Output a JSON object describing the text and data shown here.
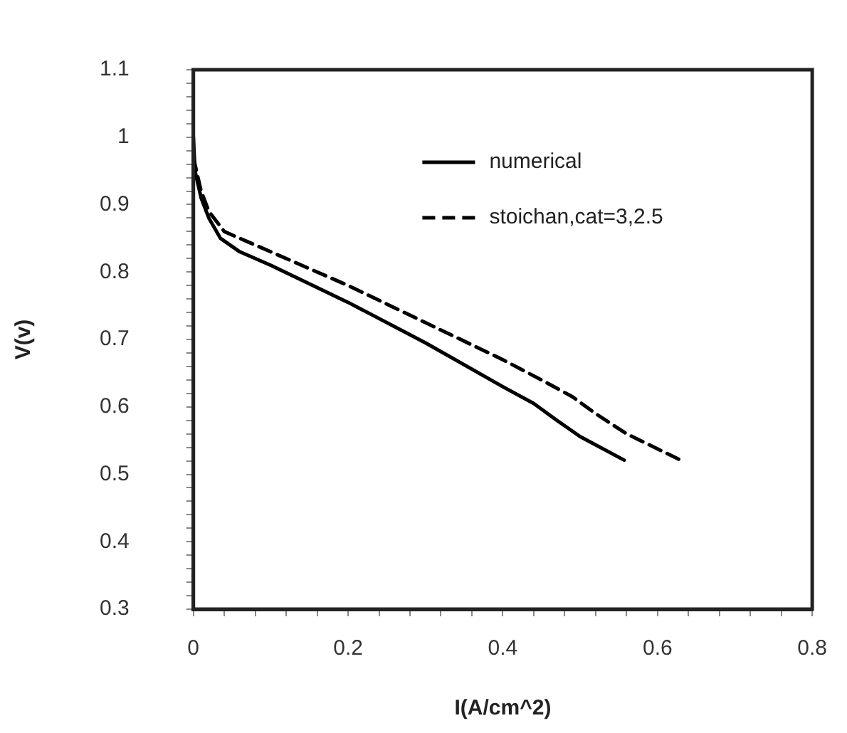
{
  "chart_data": {
    "type": "line",
    "xlabel": "I(A/cm^2)",
    "ylabel": "V(v)",
    "xlim": [
      0,
      0.8
    ],
    "ylim": [
      0.3,
      1.1
    ],
    "xticks": [
      0,
      {
        "value": 0.04,
        "label": null
      },
      {
        "value": 0.08,
        "label": null
      },
      {
        "value": 0.12,
        "label": null
      },
      {
        "value": 0.16,
        "label": null
      },
      0.2,
      {
        "value": 0.24,
        "label": null
      },
      {
        "value": 0.28,
        "label": null
      },
      {
        "value": 0.32,
        "label": null
      },
      {
        "value": 0.36,
        "label": null
      },
      0.4,
      {
        "value": 0.44,
        "label": null
      },
      {
        "value": 0.48,
        "label": null
      },
      {
        "value": 0.52,
        "label": null
      },
      {
        "value": 0.56,
        "label": null
      },
      0.6,
      {
        "value": 0.64,
        "label": null
      },
      {
        "value": 0.68,
        "label": null
      },
      {
        "value": 0.72,
        "label": null
      },
      {
        "value": 0.76,
        "label": null
      },
      0.8
    ],
    "yticks": [
      0.3,
      {
        "value": 0.32,
        "label": null
      },
      {
        "value": 0.34,
        "label": null
      },
      {
        "value": 0.36,
        "label": null
      },
      {
        "value": 0.38,
        "label": null
      },
      0.4,
      {
        "value": 0.42,
        "label": null
      },
      {
        "value": 0.44,
        "label": null
      },
      {
        "value": 0.46,
        "label": null
      },
      {
        "value": 0.48,
        "label": null
      },
      0.5,
      {
        "value": 0.52,
        "label": null
      },
      {
        "value": 0.54,
        "label": null
      },
      {
        "value": 0.56,
        "label": null
      },
      {
        "value": 0.58,
        "label": null
      },
      0.6,
      {
        "value": 0.62,
        "label": null
      },
      {
        "value": 0.64,
        "label": null
      },
      {
        "value": 0.66,
        "label": null
      },
      {
        "value": 0.68,
        "label": null
      },
      0.7,
      {
        "value": 0.72,
        "label": null
      },
      {
        "value": 0.74,
        "label": null
      },
      {
        "value": 0.76,
        "label": null
      },
      {
        "value": 0.78,
        "label": null
      },
      0.8,
      {
        "value": 0.82,
        "label": null
      },
      {
        "value": 0.84,
        "label": null
      },
      {
        "value": 0.86,
        "label": null
      },
      {
        "value": 0.88,
        "label": null
      },
      0.9,
      {
        "value": 0.92,
        "label": null
      },
      {
        "value": 0.94,
        "label": null
      },
      {
        "value": 0.96,
        "label": null
      },
      {
        "value": 0.98,
        "label": null
      },
      1,
      {
        "value": 1.02,
        "label": null
      },
      {
        "value": 1.04,
        "label": null
      },
      {
        "value": 1.06,
        "label": null
      },
      {
        "value": 1.08,
        "label": null
      },
      1.1
    ],
    "grid": false,
    "legend": "top right",
    "marker": "none",
    "series": [
      {
        "name": "numerical",
        "color": "#000000",
        "line_style": "solid",
        "x": [
          0,
          0.002,
          0.01,
          0.02,
          0.035,
          0.06,
          0.1,
          0.2,
          0.3,
          0.4,
          0.44,
          0.47,
          0.5,
          0.557
        ],
        "values": [
          1.0,
          0.95,
          0.91,
          0.88,
          0.85,
          0.83,
          0.81,
          0.755,
          0.695,
          0.63,
          0.605,
          0.58,
          0.556,
          0.521
        ]
      },
      {
        "name": "stoichan,cat=3,2.5",
        "color": "#000000",
        "line_style": "dashed",
        "x": [
          0,
          0.01,
          0.02,
          0.04,
          0.07,
          0.1,
          0.2,
          0.3,
          0.4,
          0.45,
          0.49,
          0.52,
          0.56,
          0.63
        ],
        "values": [
          0.97,
          0.92,
          0.89,
          0.86,
          0.845,
          0.83,
          0.78,
          0.725,
          0.67,
          0.64,
          0.615,
          0.59,
          0.56,
          0.521
        ]
      }
    ]
  }
}
